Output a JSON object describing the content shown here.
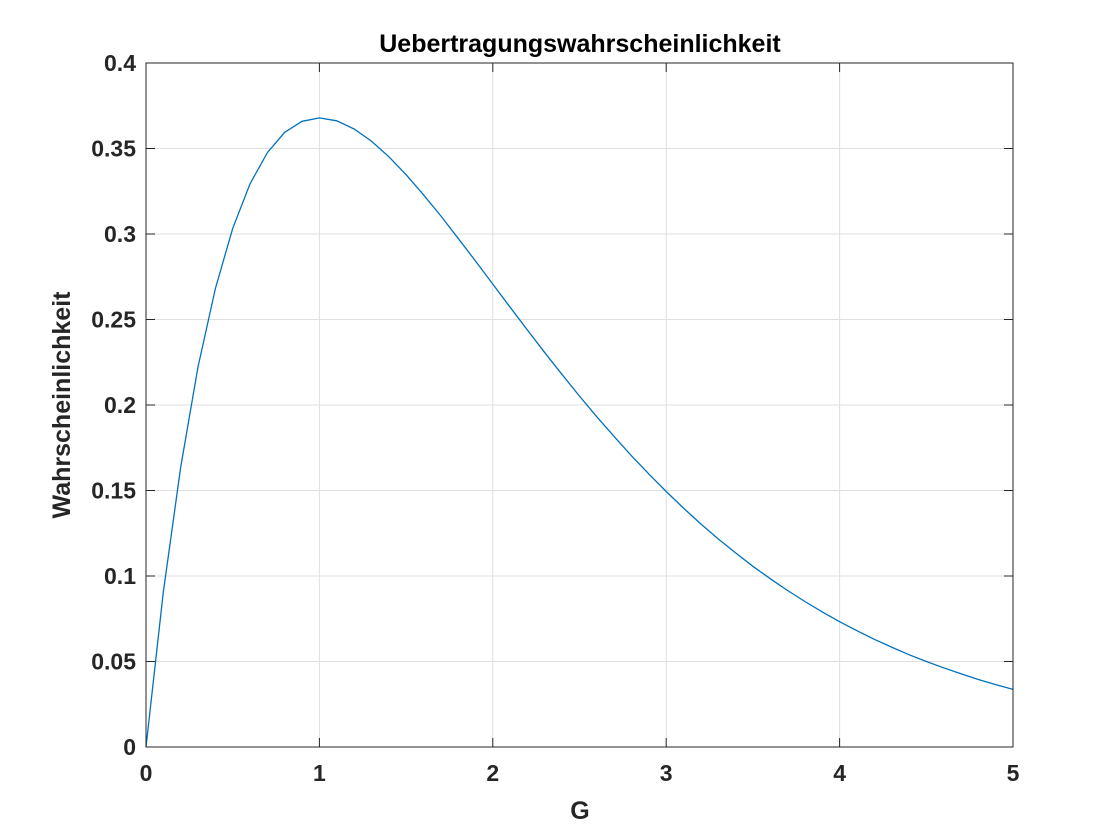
{
  "chart_data": {
    "type": "line",
    "title": "Uebertragungswahrscheinlichkeit",
    "xlabel": "G",
    "ylabel": "Wahrscheinlichkeit",
    "xlim": [
      0,
      5
    ],
    "ylim": [
      0,
      0.4
    ],
    "grid": true,
    "legend": "none",
    "line_color": "#0072BD",
    "xticks": [
      {
        "value": 0,
        "label": "0"
      },
      {
        "value": 1,
        "label": "1"
      },
      {
        "value": 2,
        "label": "2"
      },
      {
        "value": 3,
        "label": "3"
      },
      {
        "value": 4,
        "label": "4"
      },
      {
        "value": 5,
        "label": "5"
      }
    ],
    "yticks": [
      {
        "value": 0,
        "label": "0"
      },
      {
        "value": 0.05,
        "label": "0.05"
      },
      {
        "value": 0.1,
        "label": "0.1"
      },
      {
        "value": 0.15,
        "label": "0.15"
      },
      {
        "value": 0.2,
        "label": "0.2"
      },
      {
        "value": 0.25,
        "label": "0.25"
      },
      {
        "value": 0.3,
        "label": "0.3"
      },
      {
        "value": 0.35,
        "label": "0.35"
      },
      {
        "value": 0.4,
        "label": "0.4"
      }
    ],
    "series": [
      {
        "x": [
          0,
          0.1,
          0.2,
          0.3,
          0.4,
          0.5,
          0.6,
          0.7,
          0.8,
          0.9,
          1.0,
          1.1,
          1.2,
          1.3,
          1.4,
          1.5,
          1.6,
          1.7,
          1.8,
          1.9,
          2.0,
          2.1,
          2.2,
          2.3,
          2.4,
          2.5,
          2.6,
          2.7,
          2.8,
          2.9,
          3.0,
          3.1,
          3.2,
          3.3,
          3.4,
          3.5,
          3.6,
          3.7,
          3.8,
          3.9,
          4.0,
          4.1,
          4.2,
          4.3,
          4.4,
          4.5,
          4.6,
          4.7,
          4.8,
          4.9,
          5.0
        ],
        "y": [
          0,
          0.0905,
          0.1637,
          0.2222,
          0.2681,
          0.3033,
          0.3293,
          0.3476,
          0.3595,
          0.3659,
          0.3679,
          0.3662,
          0.3614,
          0.3543,
          0.3452,
          0.3347,
          0.323,
          0.3106,
          0.2975,
          0.2842,
          0.2707,
          0.2572,
          0.2438,
          0.2306,
          0.2177,
          0.2052,
          0.1931,
          0.1815,
          0.1703,
          0.1596,
          0.1494,
          0.1397,
          0.1304,
          0.1217,
          0.1135,
          0.1057,
          0.0984,
          0.0915,
          0.0851,
          0.079,
          0.0733,
          0.068,
          0.063,
          0.0584,
          0.054,
          0.05,
          0.0463,
          0.0428,
          0.0395,
          0.0365,
          0.0337
        ]
      }
    ]
  }
}
